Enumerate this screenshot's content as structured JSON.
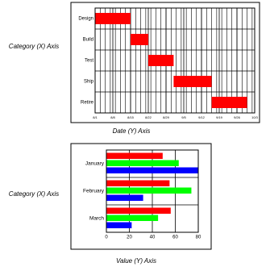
{
  "chart_data": [
    {
      "type": "gantt",
      "axis_title_category": "Category (X) Axis",
      "axis_title_value": "Date (Y) Axis",
      "categories": [
        "Design",
        "Build",
        "Test",
        "Ship",
        "Retire"
      ],
      "starts": [
        0,
        14,
        21,
        31,
        46
      ],
      "ends": [
        14,
        21,
        31,
        46,
        60
      ],
      "color": "#ff0000",
      "xlim": [
        0,
        63
      ],
      "xticks": [
        {
          "value": 0,
          "label": "8/1"
        },
        {
          "value": 7,
          "label": "8/8"
        },
        {
          "value": 14,
          "label": "8/15"
        },
        {
          "value": 21,
          "label": "8/22"
        },
        {
          "value": 28,
          "label": "8/29"
        },
        {
          "value": 35,
          "label": "9/5"
        },
        {
          "value": 42,
          "label": "9/12"
        },
        {
          "value": 49,
          "label": "9/19"
        },
        {
          "value": 56,
          "label": "9/26"
        },
        {
          "value": 63,
          "label": "10/3"
        }
      ],
      "grid": true,
      "minor_grid_step": 2
    },
    {
      "type": "hbar",
      "axis_title_category": "Category (X) Axis",
      "axis_title_value": "Value (Y) Axis",
      "categories": [
        "January",
        "February",
        "March"
      ],
      "series": [
        {
          "color": "#ff0000",
          "values": [
            49,
            55,
            56
          ]
        },
        {
          "color": "#00ff00",
          "values": [
            63,
            74,
            45
          ]
        },
        {
          "color": "#0000ff",
          "values": [
            80,
            32,
            22
          ]
        }
      ],
      "xlim": [
        0,
        80
      ],
      "xticks": [
        0,
        20,
        40,
        60,
        80
      ],
      "grid": true
    }
  ]
}
